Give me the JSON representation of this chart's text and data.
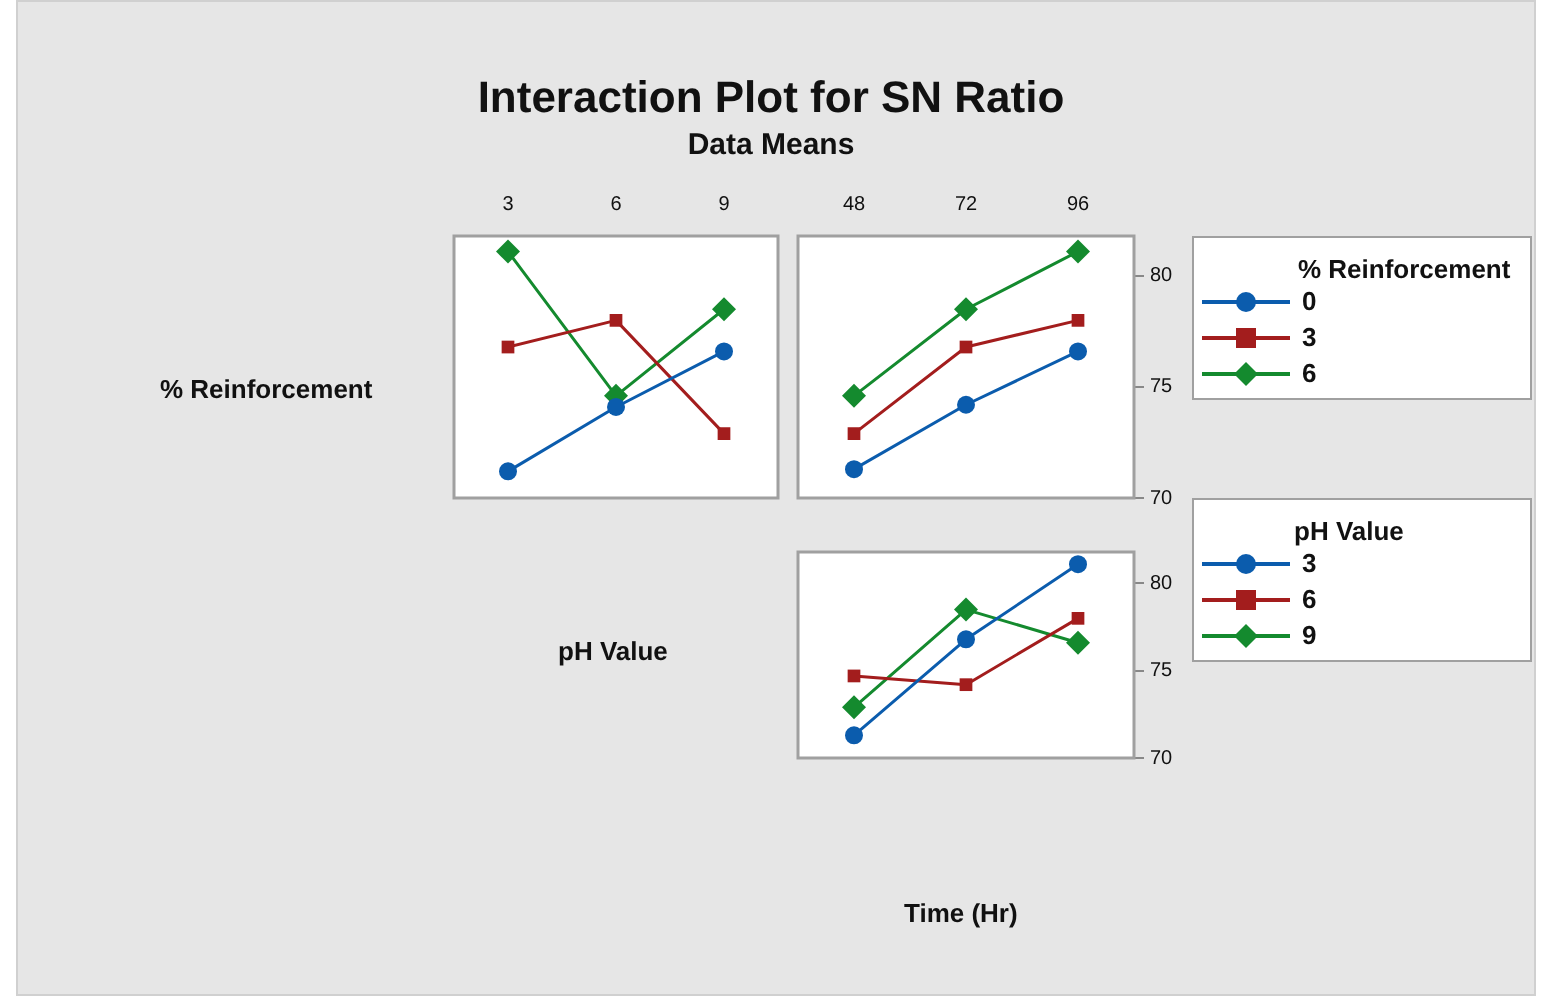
{
  "chart_data": [
    {
      "type": "line",
      "title": "Interaction Plot for SN Ratio",
      "subtitle": "Data Means",
      "ylabel": "% Reinforcement",
      "categories": [
        "3",
        "6",
        "9"
      ],
      "ylim": [
        70,
        81.8
      ],
      "tick_labels": "x",
      "series": [
        {
          "color": "#0b5cad",
          "marker": "circle",
          "values": [
            71.2,
            74.1,
            76.6
          ]
        },
        {
          "color": "#a31d1d",
          "marker": "square",
          "values": [
            76.8,
            78.0,
            72.9
          ]
        },
        {
          "color": "#148a2e",
          "marker": "diamond",
          "values": [
            81.1,
            74.6,
            78.5
          ]
        }
      ]
    },
    {
      "type": "line",
      "categories": [
        "48",
        "72",
        "96"
      ],
      "ylim": [
        70,
        81.8
      ],
      "yticks": [
        70,
        75,
        80
      ],
      "legend": "right",
      "legend_title": "% Reinforcement",
      "series": [
        {
          "name": "0",
          "color": "#0b5cad",
          "marker": "circle",
          "values": [
            71.3,
            74.2,
            76.6
          ]
        },
        {
          "name": "3",
          "color": "#a31d1d",
          "marker": "square",
          "values": [
            72.9,
            76.8,
            78.0
          ]
        },
        {
          "name": "6",
          "color": "#148a2e",
          "marker": "diamond",
          "values": [
            74.6,
            78.5,
            81.1
          ]
        }
      ]
    },
    {
      "type": "line",
      "xlabel": "Time (Hr)",
      "ylabel": "pH Value",
      "categories": [
        "48",
        "72",
        "96"
      ],
      "ylim": [
        70,
        81.8
      ],
      "yticks": [
        70,
        75,
        80
      ],
      "tick_labels": "y",
      "legend": "right",
      "legend_title": "pH Value",
      "series": [
        {
          "name": "3",
          "color": "#0b5cad",
          "marker": "circle",
          "values": [
            71.3,
            76.8,
            81.1
          ]
        },
        {
          "name": "6",
          "color": "#a31d1d",
          "marker": "square",
          "values": [
            74.7,
            74.2,
            78.0
          ]
        },
        {
          "name": "9",
          "color": "#148a2e",
          "marker": "diamond",
          "values": [
            72.9,
            78.5,
            76.6
          ]
        }
      ]
    }
  ]
}
